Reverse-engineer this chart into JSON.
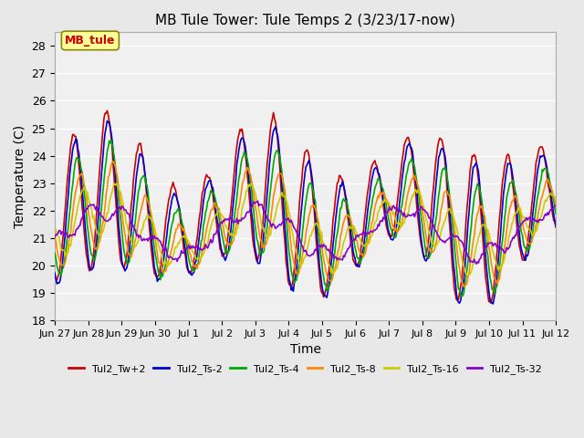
{
  "title": "MB Tule Tower: Tule Temps 2 (3/23/17-now)",
  "xlabel": "Time",
  "ylabel": "Temperature (C)",
  "ylim": [
    18.0,
    28.5
  ],
  "yticks": [
    18.0,
    19.0,
    20.0,
    21.0,
    22.0,
    23.0,
    24.0,
    25.0,
    26.0,
    27.0,
    28.0
  ],
  "xtick_labels": [
    "Jun 27",
    "Jun 28",
    "Jun 29",
    "Jun 30",
    "Jul 1",
    "Jul 2",
    "Jul 3",
    "Jul 4",
    "Jul 5",
    "Jul 6",
    "Jul 7",
    "Jul 8",
    "Jul 9",
    "Jul 10",
    "Jul 11",
    "Jul 12"
  ],
  "legend_label": "MB_tule",
  "series_labels": [
    "Tul2_Tw+2",
    "Tul2_Ts-2",
    "Tul2_Ts-4",
    "Tul2_Ts-8",
    "Tul2_Ts-16",
    "Tul2_Ts-32"
  ],
  "series_colors": [
    "#cc0000",
    "#0000cc",
    "#00aa00",
    "#ff8800",
    "#cccc00",
    "#8800cc"
  ],
  "background_color": "#e8e8e8",
  "plot_background": "#f0f0f0",
  "grid_color": "#ffffff",
  "n_points": 480,
  "days": 15
}
